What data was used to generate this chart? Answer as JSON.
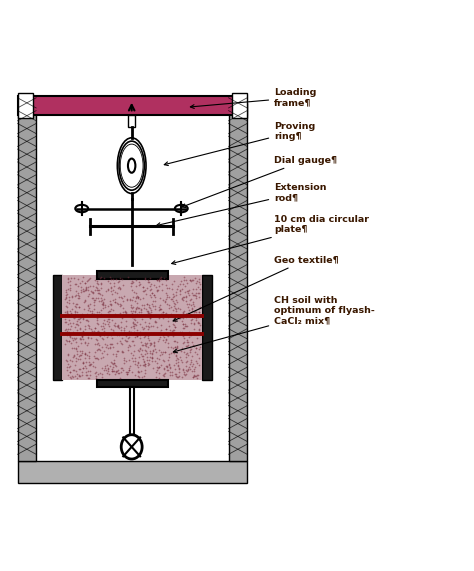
{
  "fig_width": 4.74,
  "fig_height": 5.71,
  "dpi": 100,
  "bg_color": "#ffffff",
  "frame_color": "#b0b0b0",
  "col_color": "#a0a0a0",
  "beam_color": "#b03060",
  "soil_color": "#c8a8b0",
  "soil_dot_color": "#7a3040",
  "dark_gray": "#1a1a1a",
  "mid_gray": "#606060",
  "black": "#000000",
  "label_color": "#3a1800",
  "geo_line_color": "#8b0000",
  "labels": {
    "loading_frame": "Loading\nframe¶",
    "proving_ring": "Proving\nring¶",
    "dial_gauge": "Dial gauge¶",
    "extension_rod": "Extension\nrod¶",
    "circular_plate": "10 cm dia circular\nplate¶",
    "geo_textile": "Geo textile¶",
    "ch_soil": "CH soil with\noptimum of flyash-\nCaCl₂ mix¶"
  },
  "label_fontsize": 6.8,
  "label_fontweight": "bold"
}
